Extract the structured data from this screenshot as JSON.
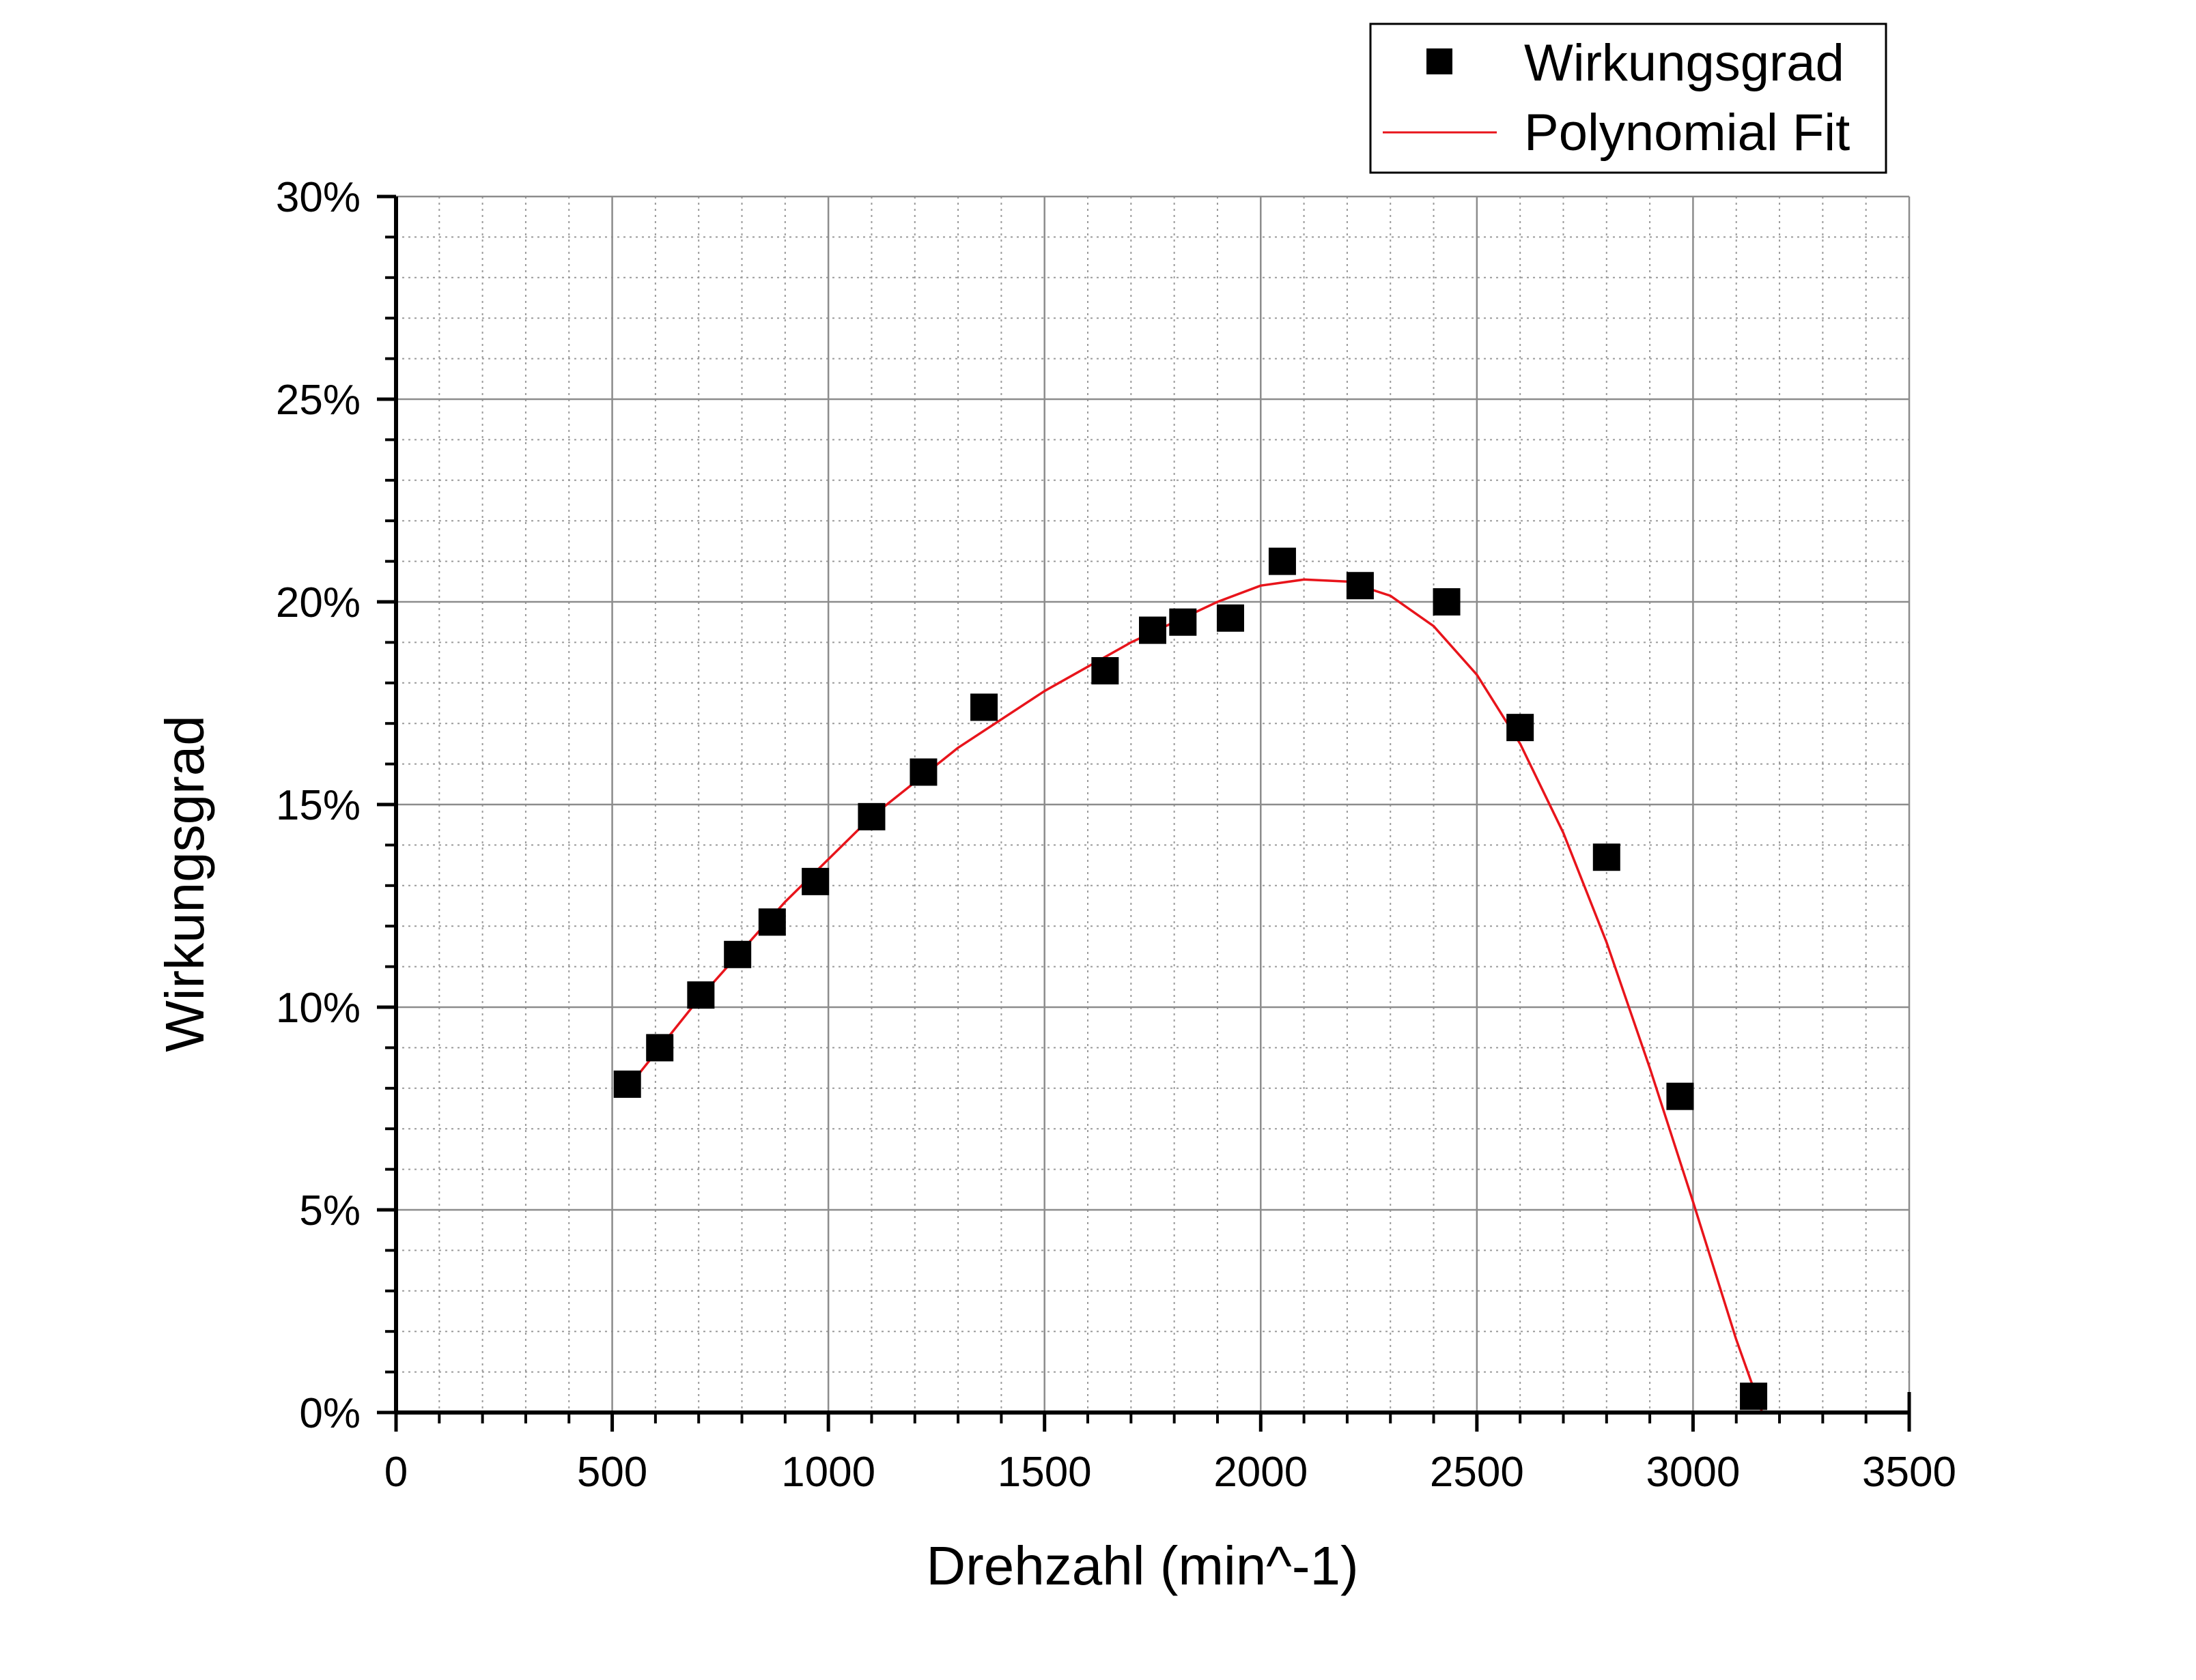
{
  "chart_data": {
    "type": "scatter",
    "xlabel": "Drehzahl (min^-1)",
    "ylabel": "Wirkungsgrad",
    "xlim": [
      0,
      3500
    ],
    "ylim": [
      0,
      30
    ],
    "x_ticks": [
      0,
      500,
      1000,
      1500,
      2000,
      2500,
      3000,
      3500
    ],
    "x_tick_labels": [
      "0",
      "500",
      "1000",
      "1500",
      "2000",
      "2500",
      "3000",
      "3500"
    ],
    "y_ticks": [
      0,
      5,
      10,
      15,
      20,
      25,
      30
    ],
    "y_tick_labels": [
      "0%",
      "5%",
      "10%",
      "15%",
      "20%",
      "25%",
      "30%"
    ],
    "grid": true,
    "legend_position": "top-right",
    "series": [
      {
        "name": "Wirkungsgrad",
        "kind": "scatter",
        "marker": "square",
        "color": "#000000",
        "x": [
          535,
          610,
          705,
          790,
          870,
          970,
          1100,
          1220,
          1360,
          1640,
          1750,
          1820,
          1930,
          2050,
          2230,
          2430,
          2600,
          2800,
          2970,
          3140
        ],
        "y": [
          8.1,
          9.0,
          10.3,
          11.3,
          12.1,
          13.1,
          14.7,
          15.8,
          17.4,
          18.3,
          19.3,
          19.5,
          19.6,
          21.0,
          20.4,
          20.0,
          16.9,
          13.7,
          7.8,
          0.4
        ]
      },
      {
        "name": "Polynomial Fit",
        "kind": "line",
        "color": "#e8141b",
        "x": [
          535,
          700,
          900,
          1100,
          1300,
          1500,
          1700,
          1900,
          2000,
          2100,
          2200,
          2300,
          2400,
          2500,
          2600,
          2700,
          2800,
          2900,
          3000,
          3100,
          3160
        ],
        "y": [
          8.0,
          10.2,
          12.6,
          14.7,
          16.4,
          17.8,
          19.0,
          20.0,
          20.4,
          20.55,
          20.5,
          20.15,
          19.4,
          18.2,
          16.5,
          14.3,
          11.6,
          8.5,
          5.2,
          1.8,
          -0.2
        ]
      }
    ]
  }
}
